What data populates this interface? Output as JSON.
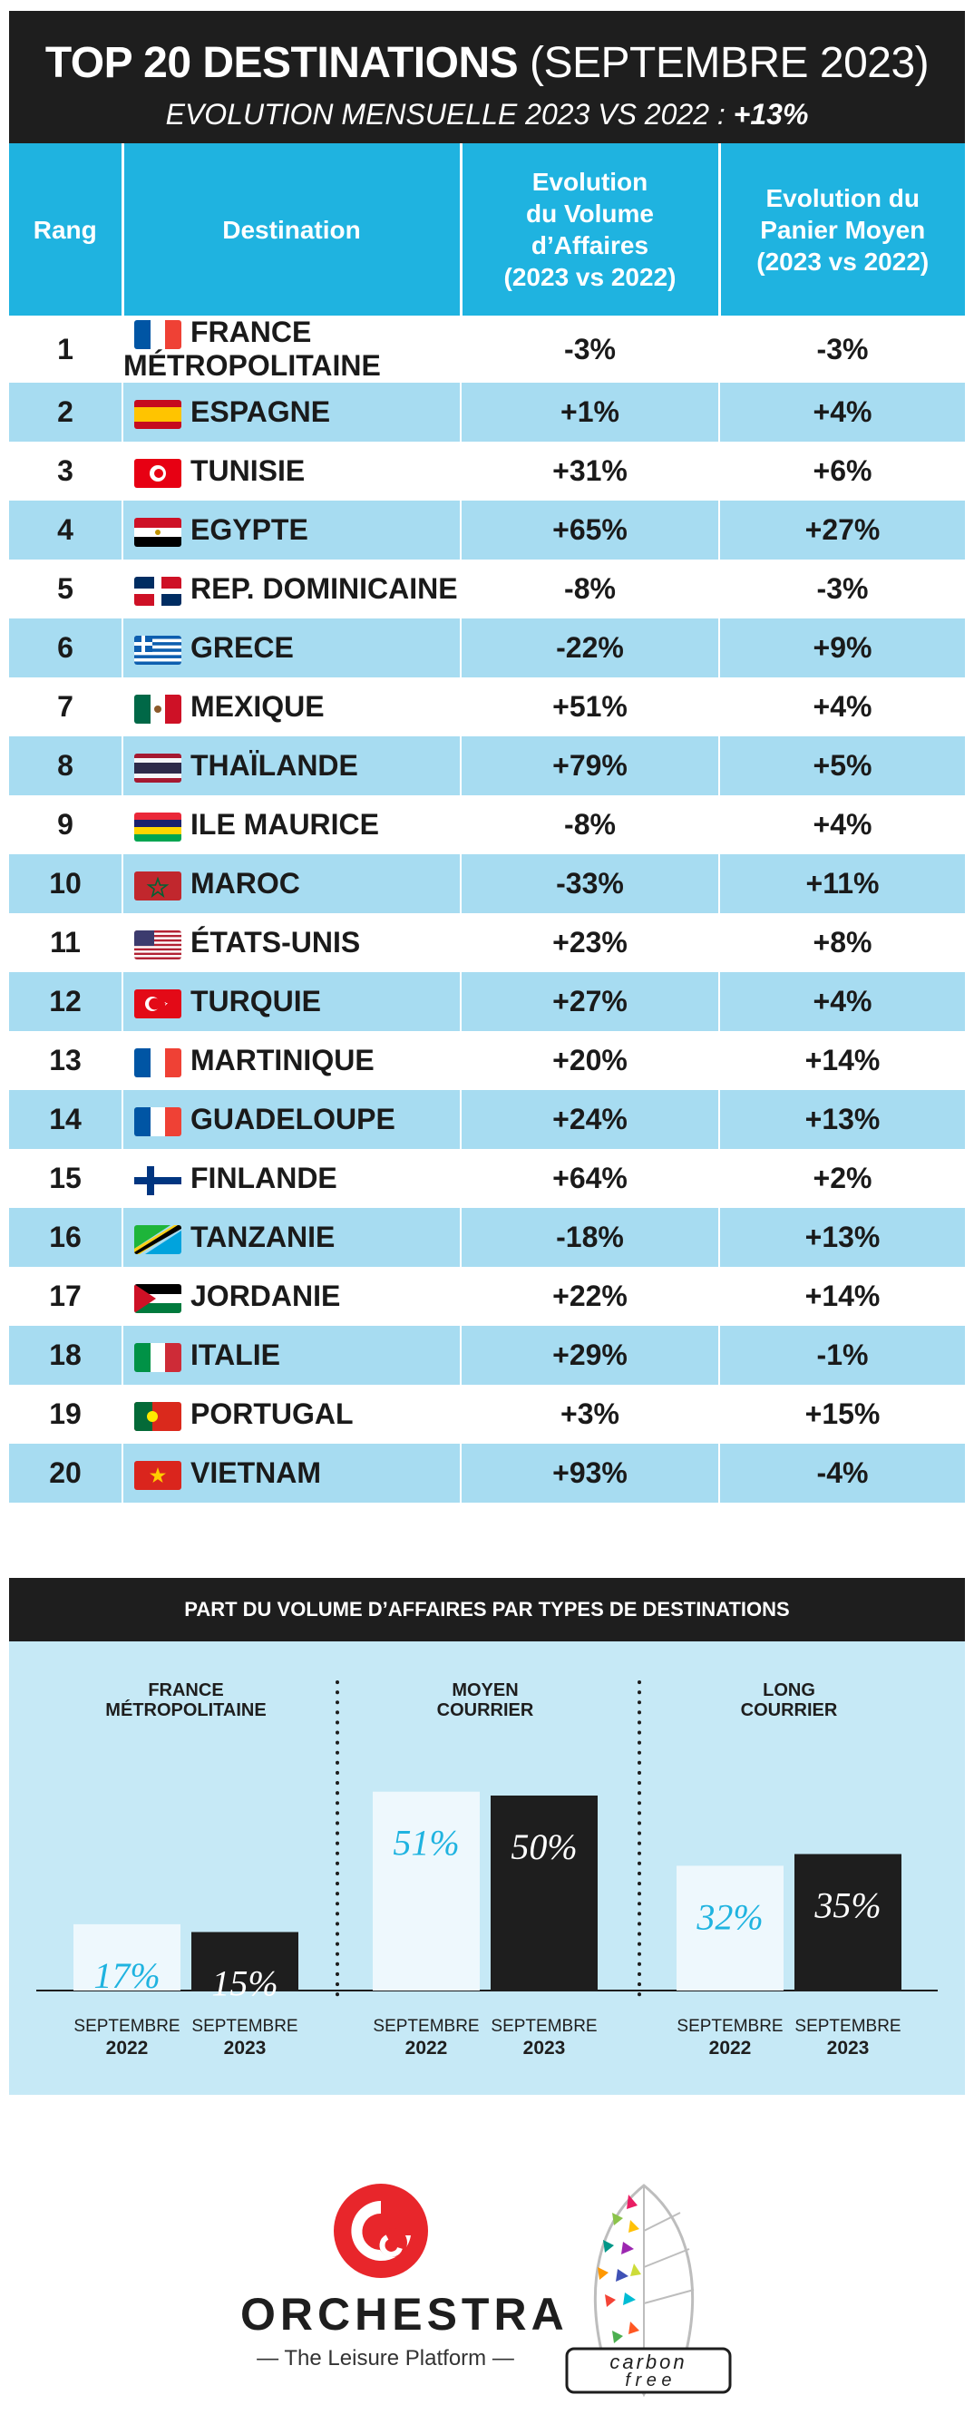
{
  "header": {
    "title_bold": "TOP 20 DESTINATIONS",
    "title_light": "(SEPTEMBRE 2023)",
    "subtitle_text": "EVOLUTION MENSUELLE 2023 VS 2022 : ",
    "subtitle_value": "+13%"
  },
  "table": {
    "columns": {
      "rank": "Rang",
      "destination": "Destination",
      "volume": [
        "Evolution",
        "du Volume",
        "d’Affaires",
        "(2023 vs 2022)"
      ],
      "panier": [
        "Evolution du",
        "Panier Moyen",
        "(2023 vs 2022)"
      ]
    },
    "rows": [
      {
        "rank": "1",
        "destination": "FRANCE MÉTROPOLITAINE",
        "flag": "france-flag-icon",
        "volume": "-3%",
        "panier": "-3%"
      },
      {
        "rank": "2",
        "destination": "ESPAGNE",
        "flag": "spain-flag-icon",
        "volume": "+1%",
        "panier": "+4%"
      },
      {
        "rank": "3",
        "destination": "TUNISIE",
        "flag": "tunisia-flag-icon",
        "volume": "+31%",
        "panier": "+6%"
      },
      {
        "rank": "4",
        "destination": "EGYPTE",
        "flag": "egypt-flag-icon",
        "volume": "+65%",
        "panier": "+27%"
      },
      {
        "rank": "5",
        "destination": "REP. DOMINICAINE",
        "flag": "dominican-republic-flag-icon",
        "volume": "-8%",
        "panier": "-3%"
      },
      {
        "rank": "6",
        "destination": "GRECE",
        "flag": "greece-flag-icon",
        "volume": "-22%",
        "panier": "+9%"
      },
      {
        "rank": "7",
        "destination": "MEXIQUE",
        "flag": "mexico-flag-icon",
        "volume": "+51%",
        "panier": "+4%"
      },
      {
        "rank": "8",
        "destination": "THAÏLANDE",
        "flag": "thailand-flag-icon",
        "volume": "+79%",
        "panier": "+5%"
      },
      {
        "rank": "9",
        "destination": "ILE MAURICE",
        "flag": "mauritius-flag-icon",
        "volume": "-8%",
        "panier": "+4%"
      },
      {
        "rank": "10",
        "destination": "MAROC",
        "flag": "morocco-flag-icon",
        "volume": "-33%",
        "panier": "+11%"
      },
      {
        "rank": "11",
        "destination": "ÉTATS-UNIS",
        "flag": "usa-flag-icon",
        "volume": "+23%",
        "panier": "+8%"
      },
      {
        "rank": "12",
        "destination": "TURQUIE",
        "flag": "turkey-flag-icon",
        "volume": "+27%",
        "panier": "+4%"
      },
      {
        "rank": "13",
        "destination": "MARTINIQUE",
        "flag": "france-flag-icon",
        "volume": "+20%",
        "panier": "+14%"
      },
      {
        "rank": "14",
        "destination": "GUADELOUPE",
        "flag": "france-flag-icon",
        "volume": "+24%",
        "panier": "+13%"
      },
      {
        "rank": "15",
        "destination": "FINLANDE",
        "flag": "finland-flag-icon",
        "volume": "+64%",
        "panier": "+2%"
      },
      {
        "rank": "16",
        "destination": "TANZANIE",
        "flag": "tanzania-flag-icon",
        "volume": "-18%",
        "panier": "+13%"
      },
      {
        "rank": "17",
        "destination": "JORDANIE",
        "flag": "jordan-flag-icon",
        "volume": "+22%",
        "panier": "+14%"
      },
      {
        "rank": "18",
        "destination": "ITALIE",
        "flag": "italy-flag-icon",
        "volume": "+29%",
        "panier": "-1%"
      },
      {
        "rank": "19",
        "destination": "PORTUGAL",
        "flag": "portugal-flag-icon",
        "volume": "+3%",
        "panier": "+15%"
      },
      {
        "rank": "20",
        "destination": "VIETNAM",
        "flag": "vietnam-flag-icon",
        "volume": "+93%",
        "panier": "-4%"
      }
    ]
  },
  "chart_data": {
    "type": "bar",
    "title": "PART DU VOLUME D’AFFAIRES PAR TYPES DE DESTINATIONS",
    "groups": [
      {
        "label": [
          "FRANCE",
          "MÉTROPOLITAINE"
        ],
        "values": [
          17,
          15
        ],
        "labels": [
          "17%",
          "15%"
        ]
      },
      {
        "label": [
          "MOYEN",
          "COURRIER"
        ],
        "values": [
          51,
          50
        ],
        "labels": [
          "51%",
          "50%"
        ]
      },
      {
        "label": [
          "LONG",
          "COURRIER"
        ],
        "values": [
          32,
          35
        ],
        "labels": [
          "32%",
          "35%"
        ]
      }
    ],
    "series": [
      {
        "name": "SEPTEMBRE 2022",
        "month": "SEPTEMBRE",
        "year": "2022",
        "color": "#eef8fd",
        "label_color": "#1fb3e0"
      },
      {
        "name": "SEPTEMBRE 2023",
        "month": "SEPTEMBRE",
        "year": "2023",
        "color": "#1e1e1e",
        "label_color": "#ffffff"
      }
    ]
  },
  "footer": {
    "orchestra_name": "ORCHESTRA",
    "orchestra_tagline": "— The Leisure Platform —",
    "carbon_word1": "carbon",
    "carbon_word2": "f r e e"
  },
  "colors": {
    "accent": "#1fb3e0",
    "row_alt": "#a7dcf1",
    "dark": "#1e1e1e",
    "panel": "#c6e9f6",
    "orchestra_red": "#e8262b"
  }
}
